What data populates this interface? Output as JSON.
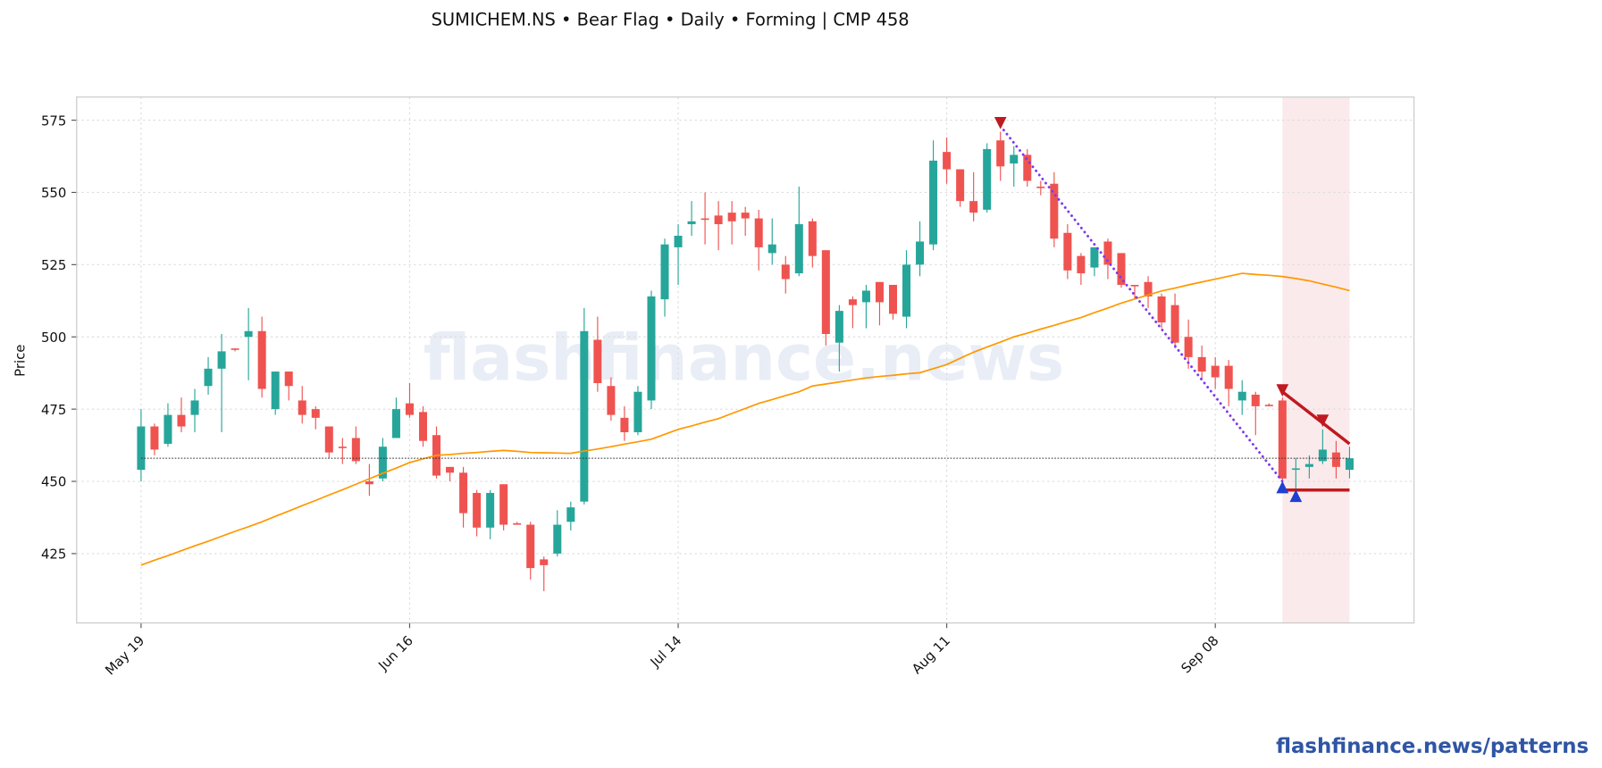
{
  "chart_data": {
    "type": "candlestick",
    "title": "SUMICHEM.NS  •  Bear Flag  •  Daily  •  Forming  |  CMP 458",
    "y_label": "Price",
    "watermark": "flashfinance.news",
    "footer": "flashfinance.news/patterns",
    "categories": [
      "May 19",
      null,
      null,
      null,
      null,
      null,
      null,
      null,
      null,
      null,
      null,
      null,
      null,
      null,
      null,
      null,
      null,
      null,
      null,
      null,
      "Jun 16",
      null,
      null,
      null,
      null,
      null,
      null,
      null,
      null,
      null,
      null,
      null,
      null,
      null,
      null,
      null,
      null,
      null,
      null,
      null,
      "Jul 14",
      null,
      null,
      null,
      null,
      null,
      null,
      null,
      null,
      null,
      null,
      null,
      null,
      null,
      null,
      null,
      null,
      null,
      null,
      null,
      "Aug 11",
      null,
      null,
      null,
      null,
      null,
      null,
      null,
      null,
      null,
      null,
      null,
      null,
      null,
      null,
      null,
      null,
      null,
      null,
      null,
      "Sep 08",
      null,
      null,
      null,
      null,
      null,
      null,
      null,
      null,
      null,
      null
    ],
    "xlim": [
      -4.8,
      94.8
    ],
    "ylim": [
      401,
      583
    ],
    "yticks": [
      425,
      450,
      475,
      500,
      525,
      550,
      575
    ],
    "grid": true,
    "up_color": "#26a69a",
    "down_color": "#ef5350",
    "open": [
      454,
      469,
      463,
      473,
      473,
      483,
      489,
      496,
      500,
      502,
      475,
      488,
      478,
      475,
      469,
      462,
      465,
      450,
      451,
      465,
      477,
      474,
      466,
      455,
      453,
      446,
      434,
      449,
      435.5,
      435,
      423,
      425,
      436,
      443,
      499,
      483,
      472,
      467,
      478,
      513,
      531,
      539,
      541,
      542,
      543,
      543,
      541,
      529,
      525,
      522,
      540,
      530,
      498,
      513,
      512,
      519,
      518,
      507,
      525,
      532,
      564,
      558,
      547,
      544,
      568,
      560,
      563,
      552,
      553,
      536,
      528,
      524,
      533,
      529,
      518,
      519,
      514,
      511,
      500,
      493,
      490,
      490,
      478,
      480,
      476.5,
      478,
      454,
      455,
      457,
      460,
      454
    ],
    "high": [
      475,
      470,
      477,
      479,
      482,
      493,
      501,
      496,
      510,
      507,
      488,
      488,
      483,
      476,
      469,
      465,
      469,
      456,
      465,
      479,
      484,
      476,
      469,
      455,
      455,
      447,
      447,
      449,
      436,
      436,
      424,
      440,
      443,
      510,
      507,
      486,
      476,
      483,
      516,
      534,
      539,
      547,
      550,
      547,
      547,
      545,
      544,
      541,
      528,
      552,
      541,
      530,
      511,
      514,
      518,
      519,
      518,
      530,
      540,
      568,
      569,
      558,
      557,
      567,
      571,
      566,
      565,
      554,
      557,
      539,
      529,
      531,
      534,
      529,
      518,
      521,
      515,
      515,
      506,
      497,
      493,
      492,
      485,
      481,
      477,
      479,
      458,
      459,
      468,
      464,
      462
    ],
    "low": [
      450,
      459,
      462,
      467,
      467,
      480,
      467,
      495,
      485,
      479,
      473,
      478,
      470,
      468,
      458,
      456,
      456,
      445,
      450,
      465,
      472,
      462,
      451,
      450,
      434,
      431,
      430,
      433,
      435,
      416,
      412,
      424,
      433,
      442,
      481,
      471,
      464,
      466,
      475,
      507,
      518,
      535,
      532,
      530,
      532,
      535,
      523,
      525,
      515,
      521,
      524,
      497,
      488,
      503,
      503,
      504,
      506,
      503,
      521,
      530,
      553,
      545,
      540,
      543,
      554,
      552,
      552,
      549,
      531,
      520,
      518,
      521,
      520,
      517,
      513,
      510,
      503,
      496,
      489,
      485,
      482,
      476,
      473,
      466,
      476,
      449,
      446,
      451,
      456,
      451,
      451
    ],
    "close": [
      469,
      461,
      473,
      469,
      478,
      489,
      495,
      495.5,
      502,
      482,
      488,
      483,
      473,
      472,
      460,
      461.5,
      457,
      449,
      462,
      475,
      473,
      464,
      452,
      453,
      439,
      434,
      446,
      435,
      435,
      420,
      421,
      435,
      441,
      502,
      484,
      473,
      467,
      481,
      514,
      532,
      535,
      540,
      540.5,
      539,
      540,
      541,
      531,
      532,
      520,
      539,
      528,
      501,
      509,
      511,
      516,
      512,
      508,
      525,
      533,
      561,
      558,
      547,
      543,
      565,
      559,
      563,
      554,
      551.5,
      534,
      523,
      522,
      531,
      525,
      518,
      517.5,
      514,
      505,
      498,
      493,
      488,
      486,
      482,
      481,
      476,
      476,
      451,
      454.5,
      456,
      461,
      455,
      458
    ],
    "ma": {
      "color": "#ff9800",
      "values": [
        421,
        422.7,
        424.3,
        426,
        427.7,
        429.3,
        431,
        432.7,
        434.3,
        436,
        437.9,
        439.7,
        441.6,
        443.4,
        445.3,
        447.1,
        449,
        450.9,
        452.8,
        454.6,
        456.5,
        457.8,
        459,
        459.3,
        459.7,
        460,
        460.4,
        460.7,
        460.4,
        460,
        459.9,
        459.8,
        459.7,
        460.5,
        461.2,
        462,
        462.9,
        463.7,
        464.6,
        466.3,
        468,
        469.2,
        470.5,
        471.7,
        473.5,
        475.2,
        477,
        478.3,
        479.7,
        481,
        483,
        483.7,
        484.4,
        485.1,
        485.8,
        486.3,
        486.7,
        487.2,
        487.6,
        489,
        490.4,
        492.6,
        494.7,
        496.5,
        498.2,
        500,
        501.3,
        502.7,
        504,
        505.4,
        506.7,
        508.4,
        510,
        511.7,
        513.1,
        514.5,
        515.9,
        516.9,
        518,
        519,
        520,
        521,
        522,
        521.6,
        521.3,
        520.9,
        520.2,
        519.4,
        518.3,
        517.2,
        516
      ]
    },
    "cmp_line": {
      "value": 458,
      "color": "#333333"
    },
    "pattern": {
      "shade": {
        "x": [
          85,
          90
        ],
        "color": "#f8e1e3"
      },
      "pole": {
        "x": [
          64,
          85
        ],
        "y": [
          573,
          450
        ],
        "color": "#7c3aed"
      },
      "flag_upper": {
        "x": [
          85,
          90
        ],
        "y": [
          481,
          463
        ],
        "color": "#c0191f"
      },
      "flag_lower": {
        "x": [
          85,
          90
        ],
        "y": [
          447,
          447
        ],
        "color": "#c0191f"
      },
      "peaks": {
        "x": [
          64,
          85,
          88
        ],
        "y": [
          574,
          481.5,
          471
        ],
        "color": "#c0191f"
      },
      "troughs": {
        "x": [
          85,
          86
        ],
        "y": [
          448,
          445
        ],
        "color": "#1f3fd1"
      }
    }
  }
}
